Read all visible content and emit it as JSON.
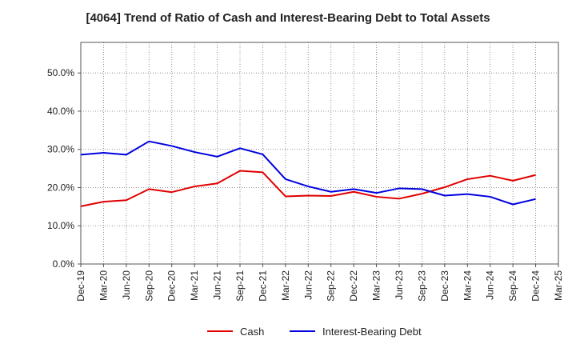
{
  "chart_data": {
    "type": "line",
    "title": "[4064]  Trend of Ratio of Cash and Interest-Bearing Debt to Total Assets",
    "xlabel": "",
    "ylabel": "",
    "x": [
      "Dec-19",
      "Mar-20",
      "Jun-20",
      "Sep-20",
      "Dec-20",
      "Mar-21",
      "Jun-21",
      "Sep-21",
      "Dec-21",
      "Mar-22",
      "Jun-22",
      "Sep-22",
      "Dec-22",
      "Mar-23",
      "Jun-23",
      "Sep-23",
      "Dec-23",
      "Mar-24",
      "Jun-24",
      "Sep-24",
      "Dec-24",
      "Mar-25"
    ],
    "ylim": [
      0,
      58
    ],
    "yticks": [
      0,
      10,
      20,
      30,
      40,
      50
    ],
    "ytick_labels": [
      "0.0%",
      "10.0%",
      "20.0%",
      "30.0%",
      "40.0%",
      "50.0%"
    ],
    "grid": true,
    "legend_position": "bottom",
    "series": [
      {
        "name": "Cash",
        "color": "#e00000",
        "values": [
          15.1,
          16.3,
          16.7,
          19.6,
          18.8,
          20.3,
          21.1,
          24.4,
          24.0,
          17.7,
          17.9,
          17.8,
          18.9,
          17.6,
          17.1,
          18.4,
          20.1,
          22.2,
          23.1,
          21.8,
          23.3,
          null
        ]
      },
      {
        "name": "Interest-Bearing Debt",
        "color": "#0000e0",
        "values": [
          28.6,
          29.1,
          28.6,
          32.1,
          30.9,
          29.3,
          28.1,
          30.3,
          28.7,
          22.2,
          20.3,
          18.9,
          19.6,
          18.6,
          19.8,
          19.6,
          17.9,
          18.3,
          17.6,
          15.6,
          17.0,
          null
        ]
      }
    ]
  }
}
